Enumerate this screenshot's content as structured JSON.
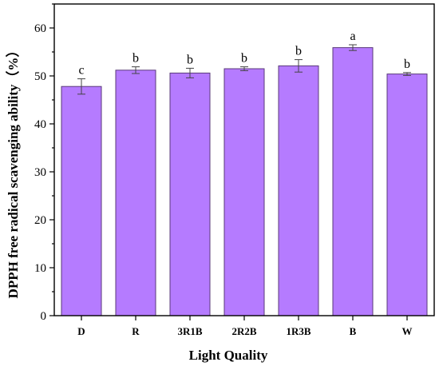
{
  "chart_data": {
    "type": "bar",
    "categories": [
      "D",
      "R",
      "3R1B",
      "2R2B",
      "1R3B",
      "B",
      "W"
    ],
    "values": [
      47.8,
      51.2,
      50.6,
      51.5,
      52.1,
      55.9,
      50.4
    ],
    "errors": [
      1.6,
      0.7,
      1.0,
      0.4,
      1.3,
      0.6,
      0.3
    ],
    "significance_letters": [
      "c",
      "b",
      "b",
      "b",
      "b",
      "a",
      "b"
    ],
    "xlabel": "Light Quality",
    "ylabel": "DPPH free radical scavenging ability（%）",
    "ylim": [
      0,
      65
    ],
    "yticks": [
      0,
      10,
      20,
      30,
      40,
      50,
      60
    ],
    "bar_color": "#b57bff",
    "bar_edge_color": "#5a3a7a"
  }
}
